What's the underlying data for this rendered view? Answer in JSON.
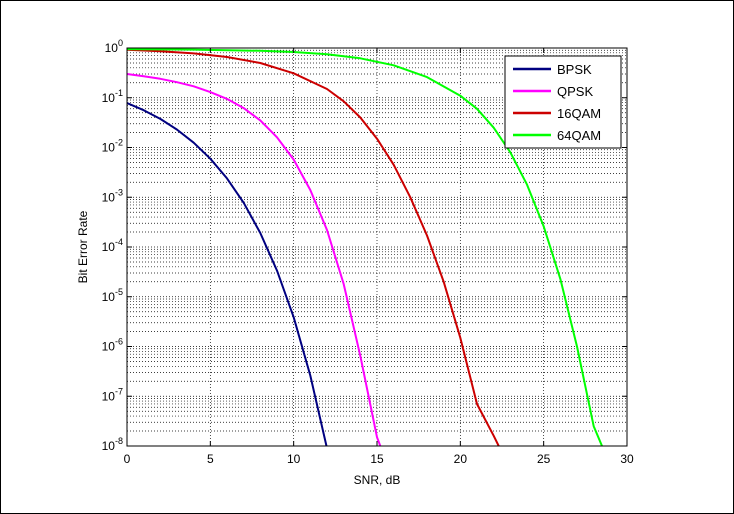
{
  "chart_data": {
    "type": "line",
    "title": "",
    "xlabel": "SNR, dB",
    "ylabel": "Bit Error Rate",
    "xlim": [
      0,
      30
    ],
    "ylim": [
      1e-08,
      1
    ],
    "yscale": "log",
    "grid": "on (major and minor, dotted)",
    "legend_position": "top-right",
    "x_ticks": [
      0,
      5,
      10,
      15,
      20,
      25,
      30
    ],
    "y_ticks": [
      {
        "base": "10",
        "exp": "0"
      },
      {
        "base": "10",
        "exp": "-1"
      },
      {
        "base": "10",
        "exp": "-2"
      },
      {
        "base": "10",
        "exp": "-3"
      },
      {
        "base": "10",
        "exp": "-4"
      },
      {
        "base": "10",
        "exp": "-5"
      },
      {
        "base": "10",
        "exp": "-6"
      },
      {
        "base": "10",
        "exp": "-7"
      },
      {
        "base": "10",
        "exp": "-8"
      }
    ],
    "series": [
      {
        "name": "BPSK",
        "color": "#000080",
        "x": [
          0,
          1,
          2,
          3,
          4,
          5,
          6,
          7,
          8,
          9,
          10,
          11,
          12
        ],
        "y": [
          0.0786,
          0.0563,
          0.0375,
          0.0229,
          0.0125,
          0.00595,
          0.00239,
          0.000773,
          0.000191,
          3.36e-05,
          3.87e-06,
          2.61e-07,
          9e-09
        ]
      },
      {
        "name": "QPSK",
        "color": "#ff00ff",
        "x": [
          0,
          1,
          2,
          3,
          4,
          5,
          6,
          7,
          8,
          9,
          10,
          11,
          12,
          13,
          14,
          15,
          15.2
        ],
        "y": [
          0.3,
          0.27,
          0.24,
          0.205,
          0.17,
          0.13,
          0.095,
          0.062,
          0.035,
          0.016,
          0.0057,
          0.0014,
          0.00022,
          1.8e-05,
          6.5e-07,
          1.5e-08,
          1e-08
        ]
      },
      {
        "name": "16QAM",
        "color": "#cc0000",
        "x": [
          0,
          2,
          4,
          6,
          8,
          10,
          12,
          13,
          14,
          15,
          16,
          17,
          18,
          19,
          20,
          21,
          22,
          22.3
        ],
        "y": [
          0.92,
          0.86,
          0.78,
          0.66,
          0.5,
          0.31,
          0.15,
          0.085,
          0.04,
          0.015,
          0.0045,
          0.001,
          0.00017,
          2e-05,
          1.5e-06,
          7e-08,
          1.6e-08,
          1e-08
        ]
      },
      {
        "name": "64QAM",
        "color": "#00ff00",
        "x": [
          0,
          4,
          8,
          10,
          12,
          14,
          16,
          18,
          20,
          21,
          22,
          23,
          24,
          25,
          26,
          27,
          28,
          28.5
        ],
        "y": [
          0.95,
          0.93,
          0.88,
          0.83,
          0.75,
          0.62,
          0.45,
          0.26,
          0.11,
          0.06,
          0.025,
          0.008,
          0.0018,
          0.00026,
          2.3e-05,
          1e-06,
          2.5e-08,
          1e-08
        ]
      }
    ]
  }
}
